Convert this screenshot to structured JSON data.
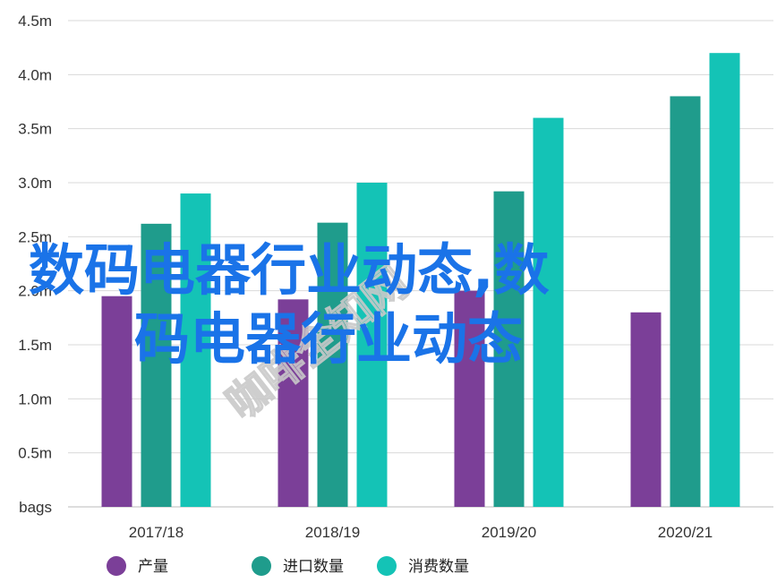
{
  "chart_data": {
    "type": "bar",
    "categories": [
      "2017/18",
      "2018/19",
      "2019/20",
      "2020/21"
    ],
    "series": [
      {
        "name": "产量",
        "color": "#7b3f98",
        "values": [
          1.95,
          1.92,
          2.0,
          1.8
        ]
      },
      {
        "name": "进口数量",
        "color": "#1f9c8c",
        "values": [
          2.62,
          2.63,
          2.92,
          3.8
        ]
      },
      {
        "name": "消费数量",
        "color": "#14c3b6",
        "values": [
          2.9,
          3.0,
          3.6,
          4.2
        ]
      }
    ],
    "y_ticks": [
      "bags",
      "0.5m",
      "1.0m",
      "1.5m",
      "2.0m",
      "2.5m",
      "3.0m",
      "3.5m",
      "4.0m",
      "4.5m"
    ],
    "ylim": [
      0,
      4.5
    ],
    "grid": true,
    "legend_position": "bottom"
  },
  "overlay": {
    "line1": "数码电器行业动态,数",
    "line2": "码电器行业动态",
    "watermark": "咖啡全知网"
  }
}
